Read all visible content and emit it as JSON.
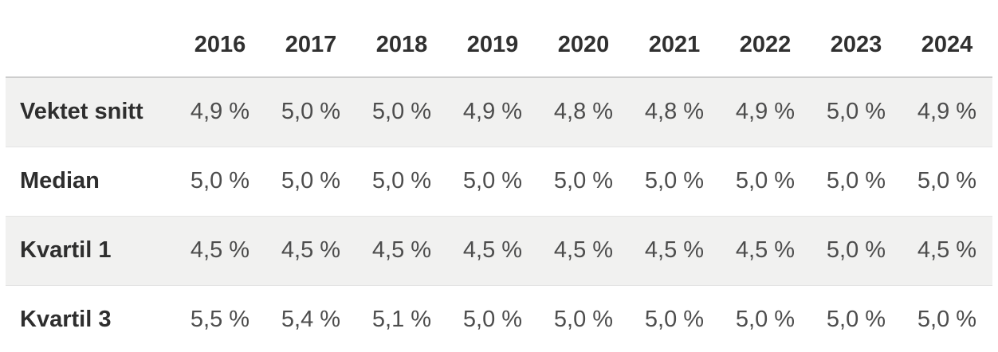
{
  "table": {
    "header": {
      "corner": "",
      "years": [
        "2016",
        "2017",
        "2018",
        "2019",
        "2020",
        "2021",
        "2022",
        "2023",
        "2024"
      ]
    },
    "rows": [
      {
        "label": "Vektet snitt",
        "values": [
          "4,9 %",
          "5,0 %",
          "5,0 %",
          "4,9 %",
          "4,8 %",
          "4,8 %",
          "4,9 %",
          "5,0 %",
          "4,9 %"
        ]
      },
      {
        "label": "Median",
        "values": [
          "5,0 %",
          "5,0 %",
          "5,0 %",
          "5,0 %",
          "5,0 %",
          "5,0 %",
          "5,0 %",
          "5,0 %",
          "5,0 %"
        ]
      },
      {
        "label": "Kvartil 1",
        "values": [
          "4,5 %",
          "4,5 %",
          "4,5 %",
          "4,5 %",
          "4,5 %",
          "4,5 %",
          "4,5 %",
          "5,0 %",
          "4,5 %"
        ]
      },
      {
        "label": "Kvartil 3",
        "values": [
          "5,5 %",
          "5,4 %",
          "5,1 %",
          "5,0 %",
          "5,0 %",
          "5,0 %",
          "5,0 %",
          "5,0 %",
          "5,0 %"
        ]
      }
    ]
  },
  "chart_data": {
    "type": "table",
    "columns": [
      "2016",
      "2017",
      "2018",
      "2019",
      "2020",
      "2021",
      "2022",
      "2023",
      "2024"
    ],
    "rows": [
      {
        "name": "Vektet snitt",
        "values_percent": [
          4.9,
          5.0,
          5.0,
          4.9,
          4.8,
          4.8,
          4.9,
          5.0,
          4.9
        ]
      },
      {
        "name": "Median",
        "values_percent": [
          5.0,
          5.0,
          5.0,
          5.0,
          5.0,
          5.0,
          5.0,
          5.0,
          5.0
        ]
      },
      {
        "name": "Kvartil 1",
        "values_percent": [
          4.5,
          4.5,
          4.5,
          4.5,
          4.5,
          4.5,
          4.5,
          5.0,
          4.5
        ]
      },
      {
        "name": "Kvartil 3",
        "values_percent": [
          5.5,
          5.4,
          5.1,
          5.0,
          5.0,
          5.0,
          5.0,
          5.0,
          5.0
        ]
      }
    ],
    "title": "",
    "value_format": "percent, comma decimal separator, space before % sign",
    "striped_rows": [
      0,
      2
    ]
  },
  "colors": {
    "stripe_background": "#f1f1f0",
    "header_border": "#cdcdcd",
    "row_border": "#e4e4e4",
    "header_text": "#303030",
    "label_text": "#2e2e2e",
    "value_text": "#4d4d4d",
    "page_background": "#ffffff"
  }
}
